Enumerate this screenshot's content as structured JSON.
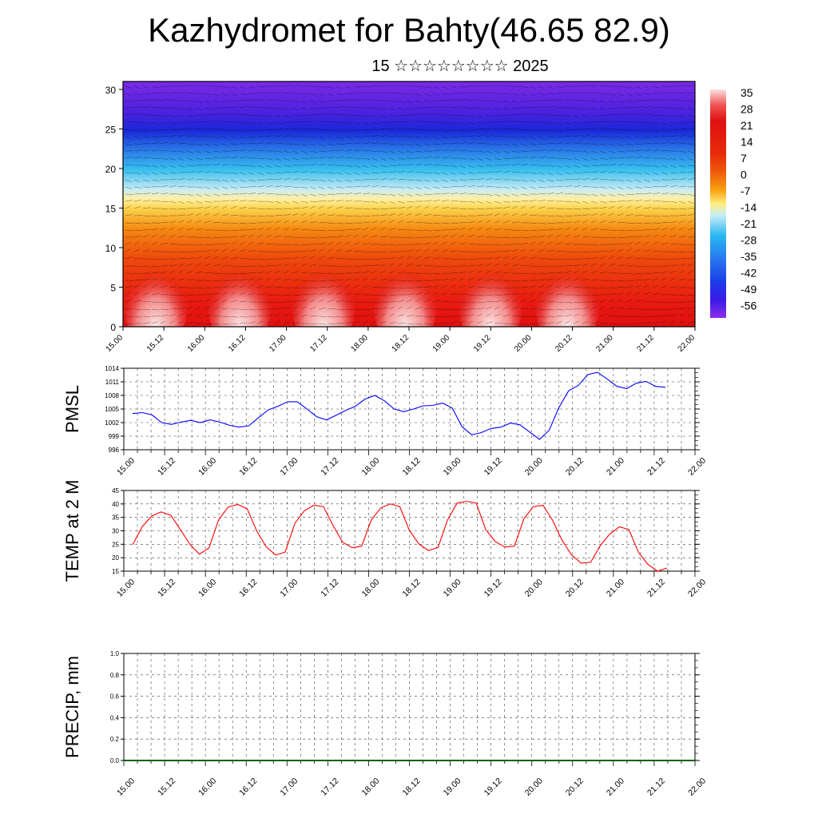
{
  "title": "Kazhydromet for Bahty(46.65 82.9)",
  "subtitle": "15 ☆☆☆☆☆☆☆☆ 2025",
  "chart_data": [
    {
      "type": "heatmap",
      "name": "cross-section",
      "x_tick_labels": [
        "15.00",
        "15.12",
        "16.00",
        "16.12",
        "17.00",
        "17.12",
        "18.00",
        "18.12",
        "19.00",
        "19.12",
        "20.00",
        "20.12",
        "21.00",
        "21.12",
        "22.00"
      ],
      "y_ticks": [
        0,
        5,
        10,
        15,
        20,
        25,
        30
      ],
      "ylim": [
        0,
        31
      ],
      "colorbar_labels": [
        "35",
        "28",
        "21",
        "14",
        "7",
        "0",
        "-7",
        "-14",
        "-21",
        "-28",
        "-35",
        "-42",
        "-49",
        "-56"
      ],
      "colorbar_colors": [
        "#fbe0e0",
        "#f05050",
        "#e01010",
        "#e82a0a",
        "#f05a0a",
        "#f8900e",
        "#fad040",
        "#fff4a0",
        "#a8e6f8",
        "#28b8f0",
        "#2878f0",
        "#1a3ee8",
        "#3a1ae8",
        "#7a28e8"
      ]
    },
    {
      "type": "line",
      "name": "pmsl",
      "ylabel": "PMSL",
      "ylim": [
        996,
        1014
      ],
      "y_ticks": [
        996,
        999,
        1002,
        1005,
        1008,
        1011,
        1014
      ],
      "x_tick_labels": [
        "15.00",
        "15.12",
        "16.00",
        "16.12",
        "17.00",
        "17.12",
        "18.00",
        "18.12",
        "19.00",
        "19.12",
        "20.00",
        "20.12",
        "21.00",
        "21.12",
        "22.00"
      ],
      "color": "#0000ff",
      "values": [
        1004.0,
        1004.2,
        1003.7,
        1002.0,
        1001.6,
        1002.1,
        1002.5,
        1002.0,
        1002.6,
        1002.1,
        1001.4,
        1001.0,
        1001.3,
        1003.1,
        1004.8,
        1005.6,
        1006.6,
        1006.6,
        1005.0,
        1003.3,
        1002.6,
        1003.6,
        1004.7,
        1005.6,
        1007.2,
        1008.0,
        1006.8,
        1005.0,
        1004.4,
        1005.0,
        1005.7,
        1005.8,
        1006.3,
        1005.2,
        1001.1,
        999.3,
        999.8,
        1000.7,
        1001.0,
        1001.9,
        1001.5,
        999.9,
        998.3,
        1000.3,
        1005.3,
        1009.0,
        1010.2,
        1012.6,
        1013.1,
        1011.6,
        1010.0,
        1009.5,
        1010.7,
        1011.1,
        1010.0,
        1009.8
      ]
    },
    {
      "type": "line",
      "name": "temp",
      "ylabel": "TEMP at 2 M",
      "ylim": [
        15,
        45
      ],
      "y_ticks": [
        15,
        20,
        25,
        30,
        35,
        40,
        45
      ],
      "x_tick_labels": [
        "15.00",
        "15.12",
        "16.00",
        "16.12",
        "17.00",
        "17.12",
        "18.00",
        "18.12",
        "19.00",
        "19.12",
        "20.00",
        "20.12",
        "21.00",
        "21.12",
        "22.00"
      ],
      "color": "#ff0000",
      "values": [
        24.8,
        31.5,
        35.5,
        37.0,
        35.8,
        30.5,
        25.0,
        21.3,
        23.6,
        34.0,
        38.8,
        39.8,
        38.2,
        30.0,
        24.0,
        21.0,
        22.1,
        32.8,
        37.5,
        39.5,
        39.0,
        32.0,
        25.8,
        23.7,
        24.3,
        34.0,
        38.5,
        40.0,
        39.0,
        30.2,
        25.1,
        22.7,
        23.8,
        34.0,
        40.3,
        41.0,
        40.3,
        30.5,
        26.0,
        24.0,
        24.3,
        34.5,
        39.0,
        39.5,
        34.0,
        26.5,
        21.0,
        18.0,
        18.3,
        24.5,
        28.8,
        31.5,
        30.5,
        22.0,
        17.5,
        15.0,
        16.2
      ]
    },
    {
      "type": "line",
      "name": "precip",
      "ylabel": "PRECIP, mm",
      "ylim": [
        0,
        1
      ],
      "y_ticks": [
        "0.0",
        "0.2",
        "0.4",
        "0.6",
        "0.8",
        "1.0"
      ],
      "x_tick_labels": [
        "15.00",
        "15.12",
        "16.00",
        "16.12",
        "17.00",
        "17.12",
        "18.00",
        "18.12",
        "19.00",
        "19.12",
        "20.00",
        "20.12",
        "21.00",
        "21.12",
        "22.00"
      ],
      "color": "#006400",
      "values": [
        0,
        0,
        0,
        0,
        0,
        0,
        0,
        0,
        0,
        0,
        0,
        0,
        0,
        0,
        0,
        0,
        0,
        0,
        0,
        0,
        0,
        0,
        0,
        0,
        0,
        0,
        0,
        0,
        0,
        0,
        0,
        0,
        0,
        0,
        0,
        0,
        0,
        0,
        0,
        0,
        0,
        0,
        0,
        0,
        0,
        0,
        0,
        0,
        0,
        0,
        0,
        0,
        0,
        0,
        0,
        0,
        0
      ]
    }
  ]
}
